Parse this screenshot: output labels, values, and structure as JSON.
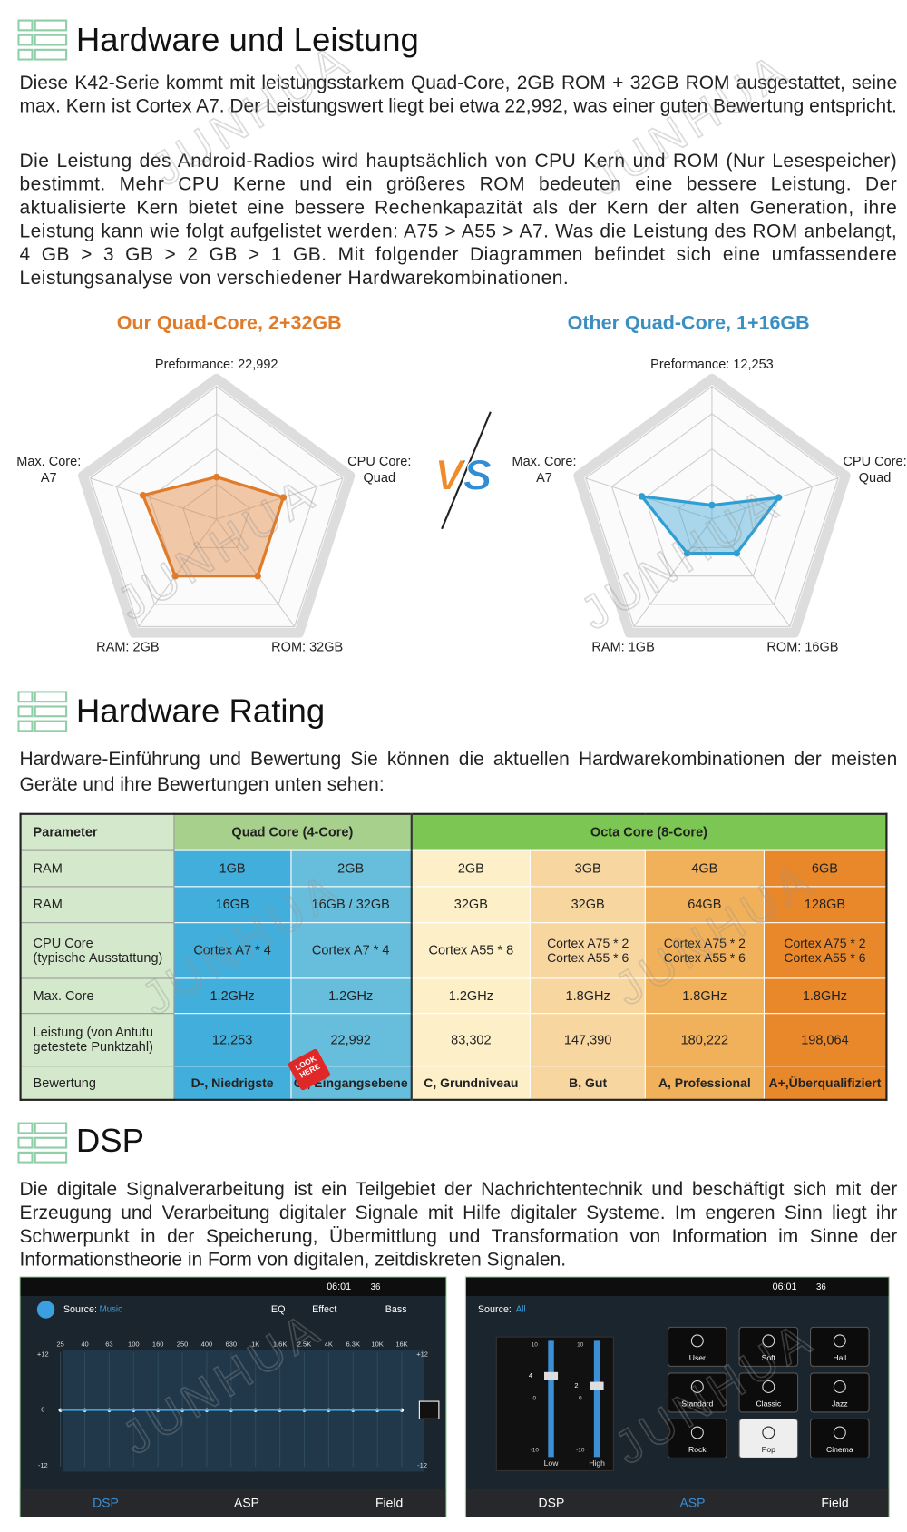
{
  "watermark": "JUNHUA",
  "hardware": {
    "title": "Hardware und Leistung",
    "paragraphs": [
      "Diese K42-Serie kommt mit leistungsstarkem Quad-Core, 2GB ROM + 32GB ROM ausgestattet, seine max. Kern ist Cortex A7. Der Leistungswert liegt bei etwa 22,992, was einer guten Bewertung entspricht.",
      "Die Leistung des Android-Radios wird hauptsächlich von CPU Kern und ROM (Nur Lesespeicher) bestimmt. Mehr CPU Kerne und ein größeres ROM bedeuten eine bessere Leistung. Der aktualisierte Kern bietet eine bessere Rechenkapazität als der Kern der alten Generation, ihre Leistung kann wie folgt aufgelistet werden: A75 > A55 > A7. Was die Leistung des ROM anbelangt, 4 GB > 3 GB > 2 GB > 1 GB. Mit folgender Diagrammen befindet sich eine umfassendere Leistungsanalyse von verschiedener Hardwarekombinationen."
    ]
  },
  "vs": "VS",
  "chart_data": [
    {
      "type": "radar",
      "title": "Our Quad-Core, 2+32GB",
      "title_color": "#e07b2a",
      "axes": [
        "Preformance: 22,992",
        "CPU Core: Quad",
        "ROM: 32GB",
        "RAM: 2GB",
        "Max. Core: A7"
      ],
      "values": [
        1.2,
        2,
        2,
        2,
        2.2
      ],
      "color": "#e07b2a",
      "rlim": [
        0,
        4
      ],
      "rticks": [
        1,
        2,
        3
      ],
      "grid": true
    },
    {
      "type": "radar",
      "title": "Other Quad-Core, 1+16GB",
      "title_color": "#3a8fc0",
      "axes": [
        "Preformance: 12,253",
        "CPU Core: Quad",
        "ROM: 16GB",
        "RAM: 1GB",
        "Max. Core: A7"
      ],
      "values": [
        0.4,
        2,
        1.2,
        1.2,
        2.1
      ],
      "color": "#2f9fd3",
      "rlim": [
        0,
        4
      ],
      "rticks": [
        1,
        2,
        3
      ],
      "grid": true
    }
  ],
  "rating": {
    "title": "Hardware Rating",
    "paragraph": "Hardware-Einführung und Bewertung Sie können die aktuellen Hardwarekombinationen der meisten Geräte und ihre Bewertungen unten sehen:",
    "table": {
      "header": [
        "Parameter",
        "Quad Core (4-Core)",
        "Octa Core (8-Core)"
      ],
      "rows": [
        [
          "RAM",
          "1GB",
          "2GB",
          "2GB",
          "3GB",
          "4GB",
          "6GB"
        ],
        [
          "RAM",
          "16GB",
          "16GB / 32GB",
          "32GB",
          "32GB",
          "64GB",
          "128GB"
        ],
        [
          "CPU Core\n(typische Ausstattung)",
          "Cortex A7 * 4",
          "Cortex A7 * 4",
          "Cortex A55 * 8",
          "Cortex A75 * 2\nCortex A55 * 6",
          "Cortex A75 * 2\nCortex A55 * 6",
          "Cortex A75 * 2\nCortex A55 * 6"
        ],
        [
          "Max. Core",
          "1.2GHz",
          "1.2GHz",
          "1.2GHz",
          "1.8GHz",
          "1.8GHz",
          "1.8GHz"
        ],
        [
          "Leistung (von Antutu\ngetestete Punktzahl)",
          "12,253",
          "22,992",
          "83,302",
          "147,390",
          "180,222",
          "198,064"
        ],
        [
          "Bewertung",
          "D-, Niedrigste",
          "C-, Eingangsebene",
          "C, Grundniveau",
          "B, Gut",
          "A, Professional",
          "A+,Überqualifiziert"
        ]
      ],
      "badge": "LOOK\nHERE"
    }
  },
  "dsp": {
    "title": "DSP",
    "paragraph": "Die digitale Signalverarbeitung ist ein Teilgebiet der Nachrichtentechnik und beschäftigt sich mit der Erzeugung und Verarbeitung digitaler Signale mit Hilfe digitaler Systeme. Im engeren Sinn liegt ihr Schwerpunkt in der Speicherung, Übermittlung und Transformation von Information im Sinne der Informationstheorie in Form von digitalen, zeitdiskreten Signalen.",
    "screens": [
      {
        "time": "06:01",
        "volume": "36",
        "source_label": "Source:",
        "source": "Music",
        "tabs": [
          "EQ",
          "Effect",
          "Bass"
        ],
        "freqs": [
          "25",
          "40",
          "63",
          "100",
          "160",
          "250",
          "400",
          "630",
          "1K",
          "1.6K",
          "2.5K",
          "4K",
          "6.3K",
          "10K",
          "16K"
        ],
        "levels": [
          "+12",
          "0",
          "-12"
        ],
        "nav": [
          "DSP",
          "ASP",
          "Field"
        ]
      },
      {
        "time": "06:01",
        "volume": "36",
        "source_label": "Source:",
        "source": "All",
        "slider_ticks": [
          "10",
          "0",
          "-10"
        ],
        "sliders": [
          {
            "label": "Low",
            "value": "4"
          },
          {
            "label": "High",
            "value": "2"
          }
        ],
        "presets": [
          "User",
          "Soft",
          "Hall",
          "Standard",
          "Classic",
          "Jazz",
          "Rock",
          "Pop",
          "Cinema"
        ],
        "nav": [
          "DSP",
          "ASP",
          "Field"
        ]
      }
    ]
  }
}
